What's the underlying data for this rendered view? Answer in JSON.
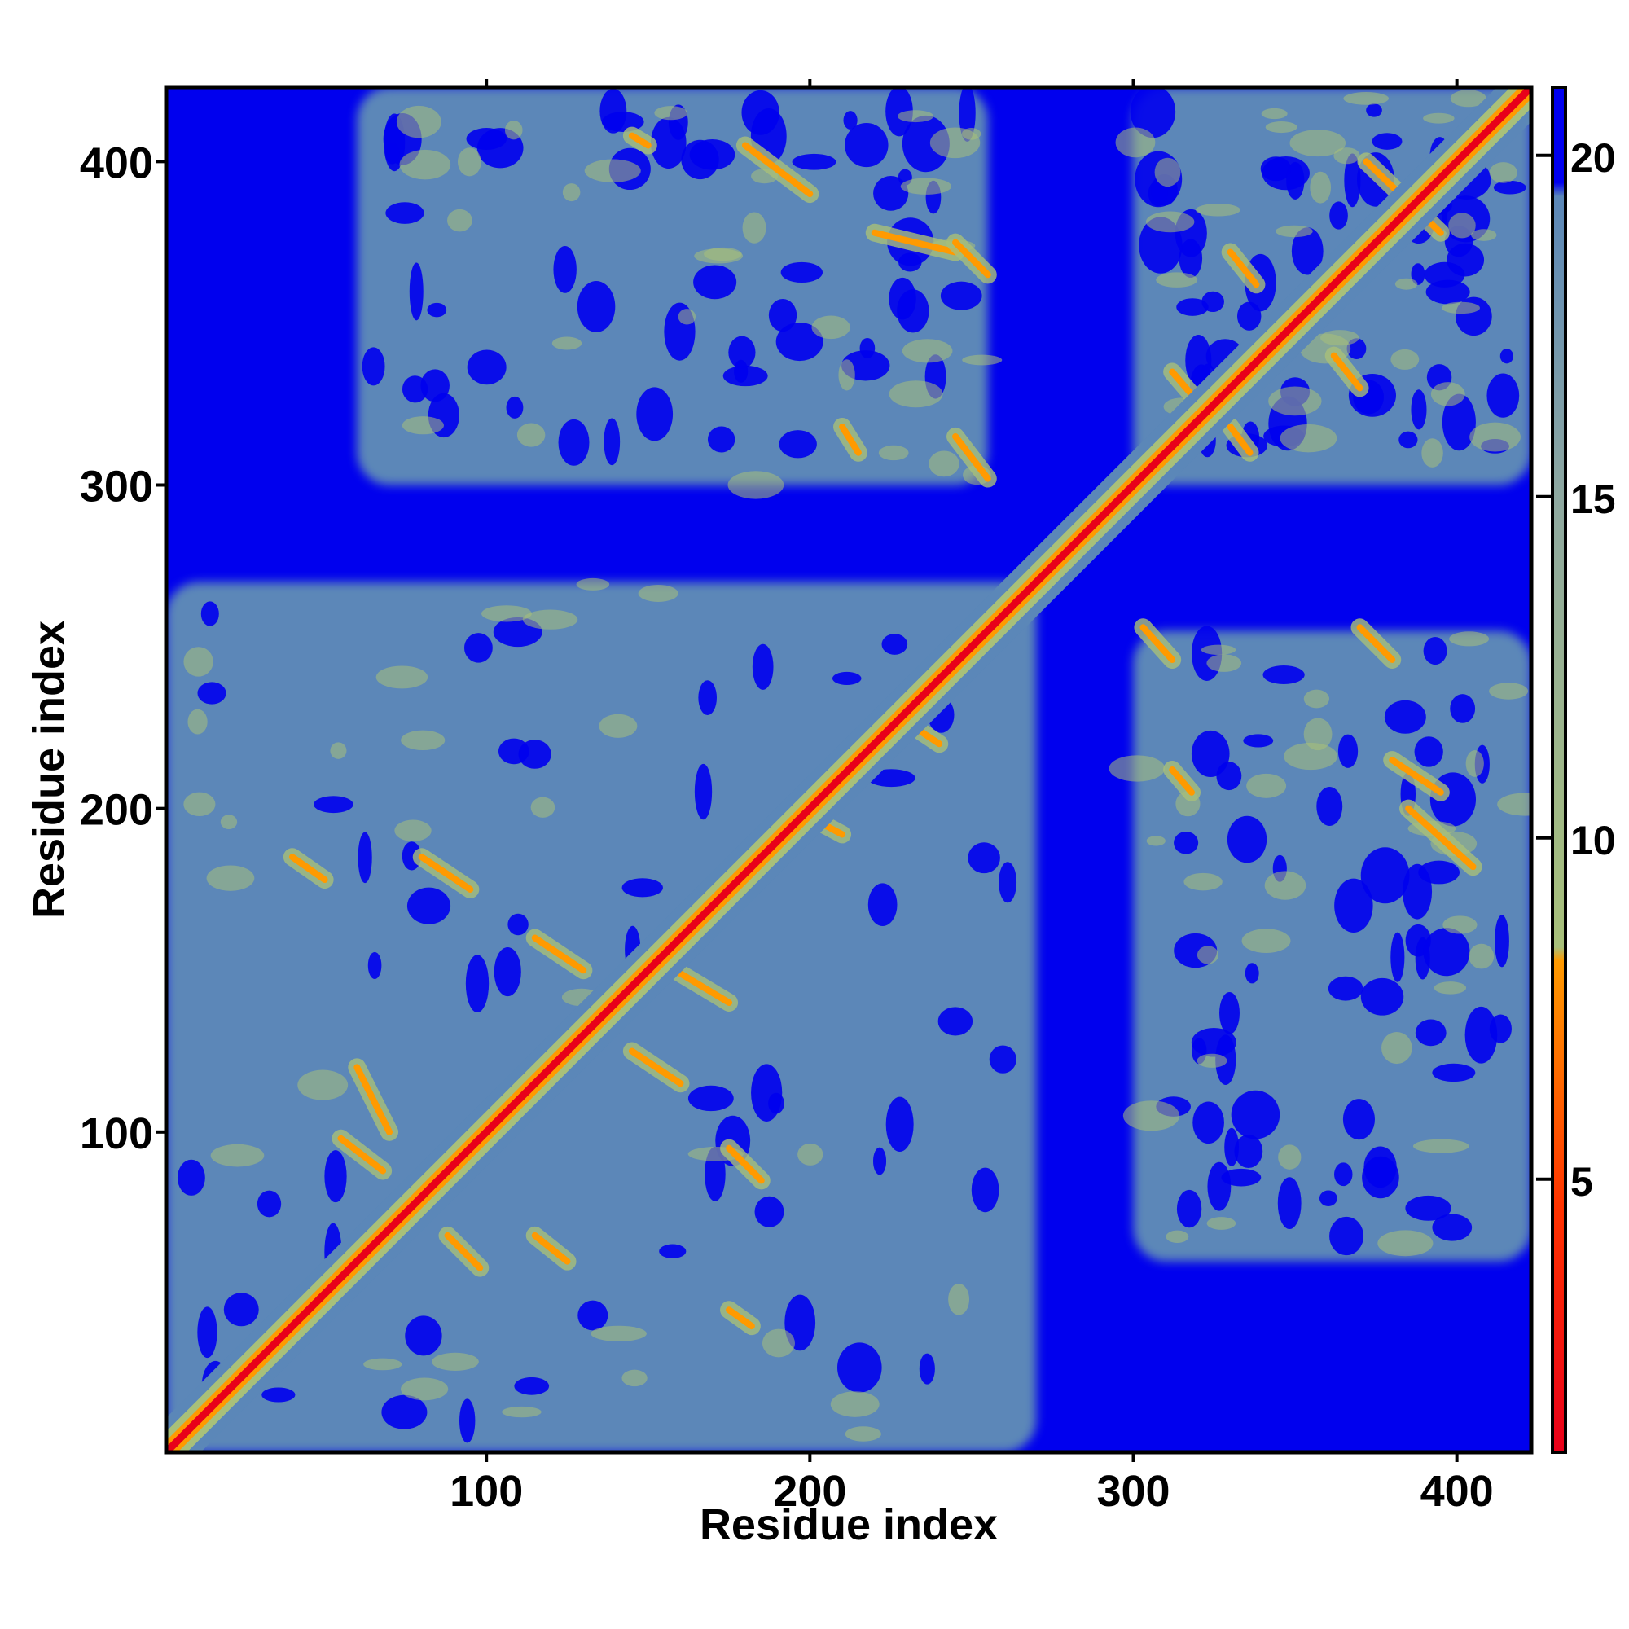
{
  "chart_data": {
    "type": "heatmap",
    "title": "",
    "xlabel": "Residue index",
    "ylabel": "Residue index",
    "xlim": [
      1,
      423
    ],
    "ylim": [
      1,
      423
    ],
    "x_ticks": [
      100,
      200,
      300,
      400
    ],
    "y_ticks": [
      100,
      200,
      300,
      400
    ],
    "colorbar": {
      "ticks": [
        5,
        10,
        15,
        20
      ],
      "range": [
        1,
        21
      ],
      "colors": {
        "close": "#e8001a",
        "near": "#ff9a00",
        "mid": "#a8c07a",
        "far": "#5b87b8",
        "background": "#0000ee"
      }
    },
    "domains": [
      {
        "name": "block_1_270",
        "x": [
          1,
          270
        ],
        "y": [
          1,
          270
        ]
      },
      {
        "name": "block_300_423",
        "x": [
          300,
          423
        ],
        "y": [
          300,
          423
        ]
      },
      {
        "name": "offdiag_upper",
        "x": [
          60,
          255
        ],
        "y": [
          300,
          423
        ]
      },
      {
        "name": "offdiag_lower",
        "x": [
          300,
          423
        ],
        "y": [
          60,
          255
        ]
      }
    ],
    "contact_lines": [
      {
        "x": [
          180,
          200
        ],
        "y": [
          405,
          390
        ]
      },
      {
        "x": [
          220,
          245
        ],
        "y": [
          378,
          372
        ]
      },
      {
        "x": [
          245,
          255
        ],
        "y": [
          375,
          365
        ]
      },
      {
        "x": [
          245,
          255
        ],
        "y": [
          315,
          302
        ]
      },
      {
        "x": [
          210,
          215
        ],
        "y": [
          318,
          310
        ]
      },
      {
        "x": [
          145,
          150
        ],
        "y": [
          408,
          405
        ]
      },
      {
        "x": [
          303,
          312
        ],
        "y": [
          256,
          246
        ]
      },
      {
        "x": [
          312,
          318
        ],
        "y": [
          212,
          205
        ]
      },
      {
        "x": [
          370,
          380
        ],
        "y": [
          256,
          246
        ]
      },
      {
        "x": [
          385,
          405
        ],
        "y": [
          200,
          182
        ]
      },
      {
        "x": [
          380,
          395
        ],
        "y": [
          215,
          205
        ]
      },
      {
        "x": [
          330,
          338
        ],
        "y": [
          372,
          362
        ]
      },
      {
        "x": [
          312,
          318
        ],
        "y": [
          335,
          328
        ]
      },
      {
        "x": [
          330,
          336
        ],
        "y": [
          318,
          310
        ]
      },
      {
        "x": [
          362,
          370
        ],
        "y": [
          340,
          330
        ]
      },
      {
        "x": [
          372,
          395
        ],
        "y": [
          400,
          378
        ]
      },
      {
        "x": [
          60,
          70
        ],
        "y": [
          120,
          100
        ]
      },
      {
        "x": [
          55,
          68
        ],
        "y": [
          98,
          88
        ]
      },
      {
        "x": [
          88,
          98
        ],
        "y": [
          68,
          58
        ]
      },
      {
        "x": [
          115,
          125
        ],
        "y": [
          68,
          60
        ]
      },
      {
        "x": [
          145,
          160
        ],
        "y": [
          125,
          115
        ]
      },
      {
        "x": [
          115,
          130
        ],
        "y": [
          160,
          150
        ]
      },
      {
        "x": [
          80,
          95
        ],
        "y": [
          185,
          175
        ]
      },
      {
        "x": [
          40,
          50
        ],
        "y": [
          185,
          178
        ]
      },
      {
        "x": [
          175,
          185
        ],
        "y": [
          95,
          85
        ]
      },
      {
        "x": [
          175,
          182
        ],
        "y": [
          45,
          40
        ]
      },
      {
        "x": [
          195,
          210
        ],
        "y": [
          200,
          192
        ]
      },
      {
        "x": [
          225,
          240
        ],
        "y": [
          230,
          220
        ]
      },
      {
        "x": [
          150,
          175
        ],
        "y": [
          155,
          140
        ]
      }
    ]
  }
}
